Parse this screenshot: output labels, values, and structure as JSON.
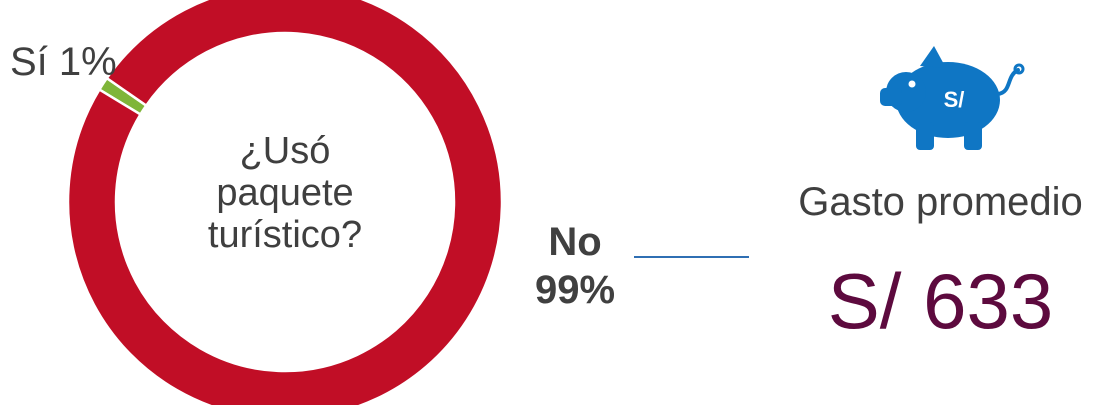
{
  "chart_data": {
    "type": "pie",
    "categories": [
      "Sí",
      "No"
    ],
    "values": [
      1,
      99
    ],
    "colors": [
      "#7fb539",
      "#c10e26"
    ],
    "center_text": [
      "¿Usó",
      "paquete",
      "turístico?"
    ],
    "labels": {
      "si": "Sí 1%",
      "no_name": "No",
      "no_pct": "99%"
    }
  },
  "spending": {
    "icon": "piggy-bank-icon",
    "icon_text": "S/",
    "icon_color": "#0f76c4",
    "label": "Gasto promedio",
    "value": "S/ 633",
    "value_color": "#5d0a3e"
  }
}
